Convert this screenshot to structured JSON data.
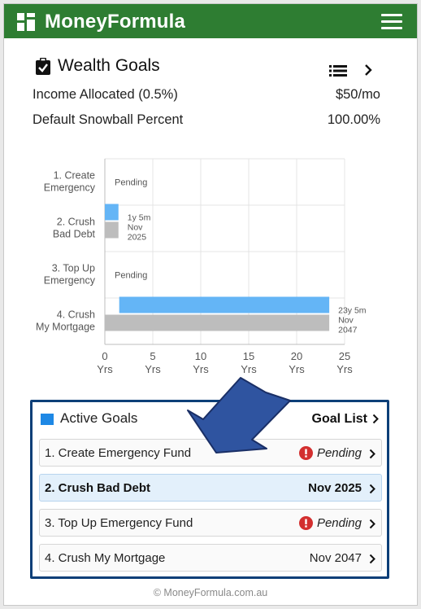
{
  "app": {
    "title": "MoneyFormula"
  },
  "header": {
    "title": "Wealth Goals"
  },
  "settings": [
    {
      "label": "Income Allocated (0.5%)",
      "value": "$50/mo"
    },
    {
      "label": "Default Snowball Percent",
      "value": "100.00%"
    }
  ],
  "chart_data": {
    "type": "bar",
    "orientation": "horizontal",
    "categories": [
      [
        "1. Create",
        "Emergency"
      ],
      [
        "2. Crush",
        "Bad Debt"
      ],
      [
        "3. Top Up",
        "Emergency"
      ],
      [
        "4. Crush",
        "My Mortgage"
      ]
    ],
    "series": [
      {
        "color": "#64b5f6",
        "values": [
          null,
          [
            0,
            1.42
          ],
          null,
          [
            1.5,
            23.4
          ]
        ]
      },
      {
        "color": "#bdbdbd",
        "values": [
          null,
          [
            0,
            1.42
          ],
          null,
          [
            0,
            23.4
          ]
        ]
      }
    ],
    "annotations": [
      [
        "Pending"
      ],
      [
        "1y 5m",
        "Nov",
        "2025"
      ],
      [
        "Pending"
      ],
      [
        "23y 5m",
        "Nov",
        "2047"
      ]
    ],
    "xticks": [
      0,
      5,
      10,
      15,
      20,
      25
    ],
    "xtick_unit": "Yrs",
    "xlim": [
      0,
      25
    ],
    "grid": true
  },
  "active_goals": {
    "title": "Active Goals",
    "link_label": "Goal List",
    "accent": "#1e88e5",
    "items": [
      {
        "label": "1. Create Emergency Fund",
        "status": "Pending",
        "alert": true
      },
      {
        "label": "2. Crush Bad Debt",
        "status": "Nov 2025",
        "alert": false,
        "selected": true
      },
      {
        "label": "3. Top Up Emergency Fund",
        "status": "Pending",
        "alert": true
      },
      {
        "label": "4. Crush My Mortgage",
        "status": "Nov 2047",
        "alert": false
      }
    ]
  },
  "footer": {
    "copyright": "© MoneyFormula.com.au"
  },
  "colors": {
    "topbar": "#2e7d32",
    "box_border": "#0d3f78",
    "arrow": "#2f54a0",
    "alert": "#d32f2f"
  }
}
